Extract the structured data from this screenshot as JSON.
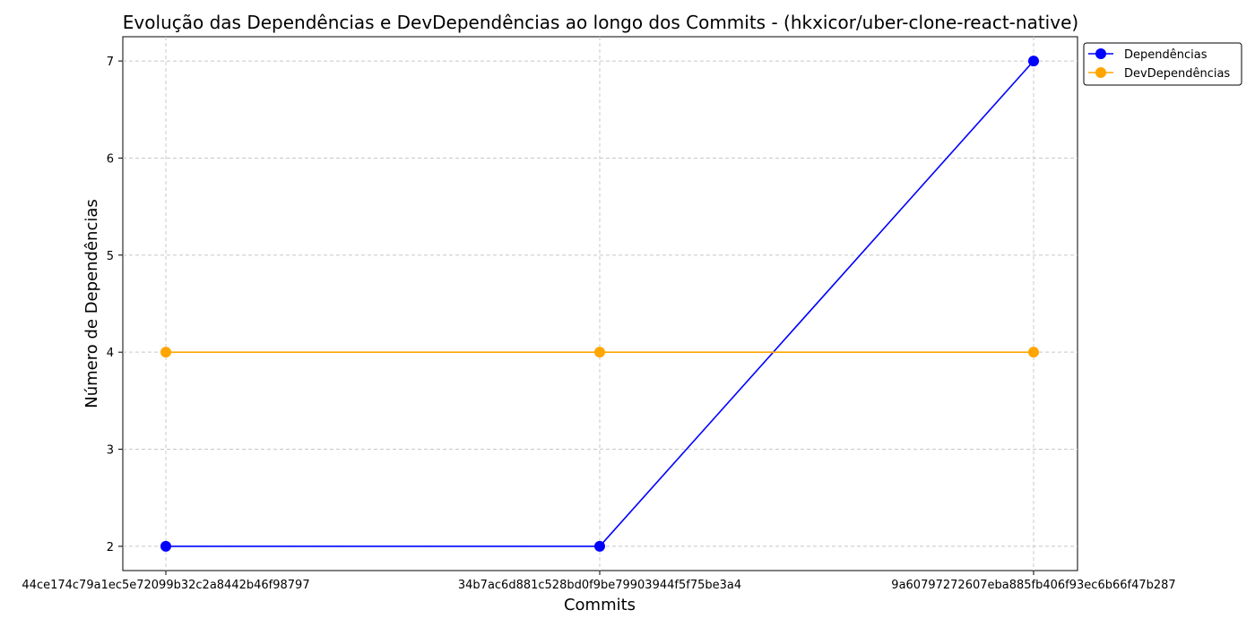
{
  "chart_data": {
    "type": "line",
    "title": "Evolução das Dependências e DevDependências ao longo dos Commits - (hkxicor/uber-clone-react-native)",
    "xlabel": "Commits",
    "ylabel": "Número de Dependências",
    "categories": [
      "44ce174c79a1ec5e72099b32c2a8442b46f98797",
      "34b7ac6d881c528bd0f9be79903944f5f75be3a4",
      "9a60797272607eba885fb406f93ec6b66f47b287"
    ],
    "series": [
      {
        "name": "Dependências",
        "values": [
          2,
          2,
          7
        ],
        "color": "#0000ff"
      },
      {
        "name": "DevDependências",
        "values": [
          4,
          4,
          4
        ],
        "color": "#ffa500"
      }
    ],
    "yticks": [
      "2",
      "3",
      "4",
      "5",
      "6",
      "7"
    ],
    "ylim": [
      1.75,
      7.25
    ],
    "grid": true,
    "legend_position": "top-right outside"
  }
}
